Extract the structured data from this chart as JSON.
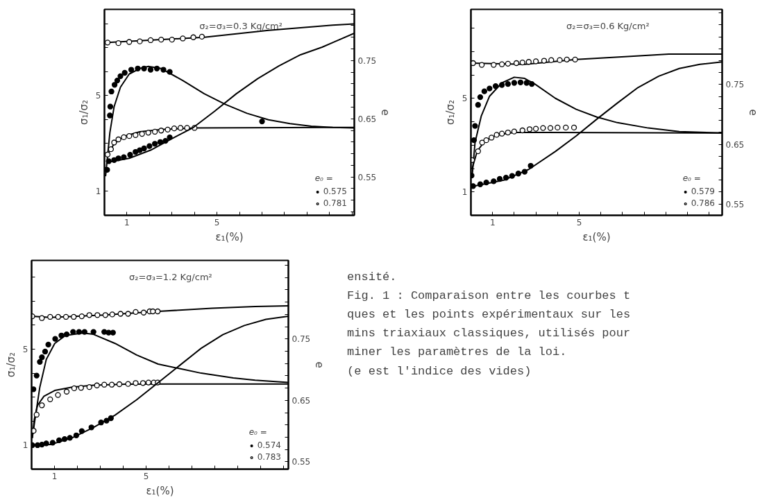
{
  "chart_data": [
    {
      "type": "line",
      "ylabel": "σ₁/σ₂",
      "y2label": "e",
      "xlabel": "ε₁(%)",
      "legend_title": "e₀ =",
      "legend": "bottom right",
      "annotations": [
        "σ₂=σ₃=0.3 Kg/cm²"
      ],
      "xlim": [
        0,
        11.1
      ],
      "ylim": [
        0,
        8.6
      ],
      "y2lim": [
        0.484,
        0.838
      ],
      "xticks": [
        1,
        {
          "value": 2,
          "label": null
        },
        {
          "value": 3,
          "label": null
        },
        {
          "value": 4,
          "label": null
        },
        5,
        {
          "value": 6,
          "label": null
        },
        {
          "value": 7,
          "label": null
        },
        {
          "value": 8,
          "label": null
        },
        {
          "value": 9,
          "label": null
        },
        {
          "value": 10,
          "label": null
        },
        {
          "value": 11,
          "label": null
        }
      ],
      "yticks": [
        1,
        {
          "value": 2,
          "label": null
        },
        {
          "value": 3,
          "label": null
        },
        {
          "value": 4,
          "label": null
        },
        5,
        {
          "value": 6,
          "label": null
        },
        {
          "value": 7,
          "label": null
        },
        {
          "value": 8,
          "label": null
        }
      ],
      "y2ticks": [
        {
          "value": 0.49,
          "label": null
        },
        {
          "value": 0.51,
          "label": null
        },
        {
          "value": 0.53,
          "label": null
        },
        0.55,
        {
          "value": 0.57,
          "label": null
        },
        {
          "value": 0.59,
          "label": null
        },
        {
          "value": 0.61,
          "label": null
        },
        {
          "value": 0.63,
          "label": null
        },
        0.65,
        {
          "value": 0.67,
          "label": null
        },
        {
          "value": 0.69,
          "label": null
        },
        {
          "value": 0.71,
          "label": null
        },
        {
          "value": 0.73,
          "label": null
        },
        0.75,
        {
          "value": 0.77,
          "label": null
        },
        {
          "value": 0.79,
          "label": null
        },
        {
          "value": 0.81,
          "label": null
        },
        {
          "value": 0.83,
          "label": null
        }
      ],
      "series": [
        {
          "type": "line",
          "axis": "y2",
          "color": "#000000",
          "x": [
            0,
            0.14,
            4.43,
            7.29,
            10.14,
            11.1
          ],
          "values": [
            0.781,
            0.781,
            0.79,
            0.802,
            0.811,
            0.813
          ]
        },
        {
          "type": "scatter",
          "axis": "y2",
          "marker": "circle",
          "color": "#ffffff",
          "x": [
            0.14,
            0.62,
            1.1,
            1.57,
            2.05,
            2.52,
            3.0,
            3.48,
            3.95,
            4.33
          ],
          "values": [
            0.781,
            0.78,
            0.782,
            0.783,
            0.785,
            0.786,
            0.786,
            0.788,
            0.79,
            0.791
          ]
        },
        {
          "type": "line",
          "color": "#000000",
          "x": [
            0.05,
            0.24,
            0.43,
            0.71,
            1.1,
            1.57,
            1.95,
            2.52,
            3.48,
            4.43,
            5.38,
            6.33,
            7.29,
            8.24,
            9.19,
            10.14,
            11.1
          ],
          "values": [
            1.63,
            3.45,
            4.54,
            5.35,
            5.9,
            6.13,
            6.22,
            6.13,
            5.63,
            5.08,
            4.63,
            4.26,
            3.99,
            3.83,
            3.72,
            3.67,
            3.65
          ]
        },
        {
          "type": "scatter",
          "name": "0.575",
          "marker": "circle",
          "color": "#000000",
          "x": [
            0.12,
            0.24,
            0.26,
            0.31,
            0.45,
            0.57,
            0.71,
            0.9,
            1.19,
            1.48,
            1.76,
            2.05,
            2.33,
            2.62,
            2.9,
            7.0
          ],
          "values": [
            1.9,
            4.17,
            4.54,
            5.17,
            5.45,
            5.63,
            5.81,
            5.95,
            6.08,
            6.13,
            6.13,
            6.08,
            6.13,
            6.08,
            5.99,
            3.92
          ]
        },
        {
          "type": "line",
          "color": "#000000",
          "x": [
            0.14,
            0.43,
            0.9,
            1.57,
            2.52,
            4.05,
            10.14,
            11.1
          ],
          "values": [
            2.54,
            2.99,
            3.31,
            3.49,
            3.58,
            3.65,
            3.67,
            3.67
          ]
        },
        {
          "type": "scatter",
          "name": "0.781",
          "marker": "circle",
          "color": "#ffffff",
          "x": [
            0.14,
            0.29,
            0.43,
            0.62,
            0.86,
            1.1,
            1.38,
            1.67,
            1.95,
            2.24,
            2.52,
            2.81,
            3.1,
            3.38,
            3.67,
            4.0
          ],
          "values": [
            2.54,
            2.76,
            3.04,
            3.17,
            3.26,
            3.31,
            3.35,
            3.4,
            3.45,
            3.49,
            3.54,
            3.58,
            3.63,
            3.65,
            3.65,
            3.65
          ]
        },
        {
          "type": "line",
          "axis": "y2",
          "color": "#000000",
          "x": [
            0.1,
            1.1,
            2.05,
            3.0,
            3.95,
            4.9,
            5.86,
            6.81,
            7.76,
            8.71,
            9.67,
            10.14,
            11.1
          ],
          "values": [
            0.575,
            0.582,
            0.596,
            0.616,
            0.635,
            0.663,
            0.693,
            0.719,
            0.741,
            0.76,
            0.773,
            0.781,
            0.797
          ]
        },
        {
          "type": "scatter",
          "axis": "y2",
          "marker": "circle",
          "color": "#000000",
          "x": [
            0.19,
            0.43,
            0.62,
            0.86,
            1.14,
            1.38,
            1.57,
            1.76,
            2.0,
            2.24,
            2.48,
            2.71,
            2.9
          ],
          "values": [
            0.577,
            0.579,
            0.582,
            0.584,
            0.588,
            0.593,
            0.596,
            0.599,
            0.603,
            0.607,
            0.61,
            0.612,
            0.618
          ]
        }
      ]
    },
    {
      "type": "line",
      "ylabel": "σ₁/σ₂",
      "y2label": "e",
      "xlabel": "ε₁(%)",
      "legend_title": "e₀ =",
      "legend": "bottom right",
      "annotations": [
        "σ₂=σ₃=0.6 Kg/cm²"
      ],
      "xlim": [
        0,
        11.6
      ],
      "ylim": [
        0,
        8.8
      ],
      "y2lim": [
        0.531,
        0.876
      ],
      "xticks": [
        1,
        {
          "value": 2,
          "label": null
        },
        {
          "value": 3,
          "label": null
        },
        {
          "value": 4,
          "label": null
        },
        5,
        {
          "value": 6,
          "label": null
        },
        {
          "value": 7,
          "label": null
        },
        {
          "value": 8,
          "label": null
        },
        {
          "value": 9,
          "label": null
        },
        {
          "value": 10,
          "label": null
        },
        {
          "value": 11,
          "label": null
        }
      ],
      "yticks": [
        1,
        {
          "value": 2,
          "label": null
        },
        {
          "value": 3,
          "label": null
        },
        {
          "value": 4,
          "label": null
        },
        5,
        {
          "value": 6,
          "label": null
        },
        {
          "value": 7,
          "label": null
        },
        {
          "value": 8,
          "label": null
        }
      ],
      "y2ticks": [
        0.55,
        {
          "value": 0.57,
          "label": null
        },
        {
          "value": 0.59,
          "label": null
        },
        {
          "value": 0.61,
          "label": null
        },
        {
          "value": 0.63,
          "label": null
        },
        0.65,
        {
          "value": 0.67,
          "label": null
        },
        {
          "value": 0.69,
          "label": null
        },
        {
          "value": 0.71,
          "label": null
        },
        {
          "value": 0.73,
          "label": null
        },
        0.75,
        {
          "value": 0.77,
          "label": null
        },
        {
          "value": 0.79,
          "label": null
        },
        {
          "value": 0.81,
          "label": null
        },
        {
          "value": 0.83,
          "label": null
        },
        {
          "value": 0.85,
          "label": null
        },
        {
          "value": 0.87,
          "label": null
        }
      ],
      "series": [
        {
          "type": "line",
          "axis": "y2",
          "color": "#000000",
          "x": [
            0,
            2.48,
            4.86,
            7.24,
            9.14,
            11.6
          ],
          "values": [
            0.786,
            0.784,
            0.792,
            0.797,
            0.801,
            0.801
          ]
        },
        {
          "type": "scatter",
          "axis": "y2",
          "marker": "circle",
          "color": "#ffffff",
          "x": [
            0.1,
            0.5,
            1.05,
            1.43,
            1.71,
            2.1,
            2.38,
            2.67,
            3.0,
            3.38,
            3.71,
            4.1,
            4.43,
            4.81
          ],
          "values": [
            0.786,
            0.783,
            0.783,
            0.784,
            0.785,
            0.786,
            0.787,
            0.788,
            0.789,
            0.79,
            0.791,
            0.791,
            0.792,
            0.792
          ]
        },
        {
          "type": "line",
          "color": "#000000",
          "x": [
            0.05,
            0.19,
            0.48,
            0.86,
            1.43,
            2.0,
            2.48,
            2.95,
            3.9,
            4.86,
            5.81,
            6.76,
            8.19,
            9.62,
            11.6
          ],
          "values": [
            1.6,
            3.11,
            4.25,
            5.09,
            5.66,
            5.9,
            5.85,
            5.61,
            5.0,
            4.53,
            4.2,
            3.96,
            3.73,
            3.58,
            3.52
          ]
        },
        {
          "type": "scatter",
          "name": "0.579",
          "marker": "circle",
          "color": "#000000",
          "x": [
            0.03,
            0.14,
            0.19,
            0.33,
            0.43,
            0.62,
            0.86,
            1.14,
            1.43,
            1.71,
            2.0,
            2.29,
            2.57,
            2.81
          ],
          "values": [
            1.7,
            3.21,
            3.82,
            4.72,
            5.05,
            5.3,
            5.42,
            5.52,
            5.57,
            5.61,
            5.66,
            5.68,
            5.66,
            5.61
          ]
        },
        {
          "type": "line",
          "color": "#000000",
          "x": [
            0.05,
            0.29,
            0.67,
            1.24,
            2.0,
            3.43,
            11.6
          ],
          "values": [
            1.98,
            2.74,
            3.21,
            3.44,
            3.54,
            3.54,
            3.52
          ]
        },
        {
          "type": "scatter",
          "name": "0.786",
          "marker": "circle",
          "color": "#ffffff",
          "x": [
            0.05,
            0.33,
            0.52,
            0.71,
            0.95,
            1.19,
            1.43,
            1.71,
            2.0,
            2.38,
            2.71,
            3.0,
            3.33,
            3.67,
            4.0,
            4.38,
            4.76
          ],
          "values": [
            2.36,
            2.74,
            3.11,
            3.21,
            3.32,
            3.44,
            3.49,
            3.54,
            3.58,
            3.63,
            3.68,
            3.7,
            3.73,
            3.73,
            3.75,
            3.75,
            3.75
          ]
        },
        {
          "type": "line",
          "axis": "y2",
          "color": "#000000",
          "x": [
            0,
            1.52,
            2.67,
            3.9,
            4.86,
            5.81,
            6.76,
            7.71,
            8.67,
            9.62,
            10.57,
            11.6
          ],
          "values": [
            0.579,
            0.59,
            0.608,
            0.638,
            0.664,
            0.692,
            0.719,
            0.745,
            0.764,
            0.777,
            0.784,
            0.788
          ]
        },
        {
          "type": "scatter",
          "axis": "y2",
          "marker": "circle",
          "color": "#000000",
          "x": [
            0.1,
            0.43,
            0.71,
            1.05,
            1.33,
            1.62,
            1.9,
            2.19,
            2.48,
            2.76
          ],
          "values": [
            0.58,
            0.583,
            0.586,
            0.588,
            0.592,
            0.594,
            0.597,
            0.601,
            0.604,
            0.614
          ]
        }
      ]
    },
    {
      "type": "line",
      "ylabel": "σ₁/σ₂",
      "y2label": "e",
      "xlabel": "ε₁(%)",
      "legend_title": "e₀ =",
      "legend": "bottom right",
      "annotations": [
        "σ₂=σ₃=1.2 Kg/cm²"
      ],
      "xlim": [
        0,
        11.2
      ],
      "ylim": [
        0,
        8.7
      ],
      "y2lim": [
        0.538,
        0.878
      ],
      "xticks": [
        1,
        {
          "value": 2,
          "label": null
        },
        {
          "value": 3,
          "label": null
        },
        {
          "value": 4,
          "label": null
        },
        5,
        {
          "value": 6,
          "label": null
        },
        {
          "value": 7,
          "label": null
        },
        {
          "value": 8,
          "label": null
        },
        {
          "value": 9,
          "label": null
        },
        {
          "value": 10,
          "label": null
        },
        {
          "value": 11,
          "label": null
        }
      ],
      "yticks": [
        1,
        {
          "value": 2,
          "label": null
        },
        {
          "value": 3,
          "label": null
        },
        {
          "value": 4,
          "label": null
        },
        5,
        {
          "value": 6,
          "label": null
        },
        {
          "value": 7,
          "label": null
        },
        {
          "value": 8,
          "label": null
        }
      ],
      "y2ticks": [
        0.55,
        {
          "value": 0.57,
          "label": null
        },
        {
          "value": 0.59,
          "label": null
        },
        {
          "value": 0.61,
          "label": null
        },
        {
          "value": 0.63,
          "label": null
        },
        0.65,
        {
          "value": 0.67,
          "label": null
        },
        {
          "value": 0.69,
          "label": null
        },
        {
          "value": 0.71,
          "label": null
        },
        {
          "value": 0.73,
          "label": null
        },
        0.75,
        {
          "value": 0.77,
          "label": null
        },
        {
          "value": 0.79,
          "label": null
        },
        {
          "value": 0.81,
          "label": null
        },
        {
          "value": 0.83,
          "label": null
        },
        {
          "value": 0.85,
          "label": null
        },
        {
          "value": 0.87,
          "label": null
        }
      ],
      "series": [
        {
          "type": "line",
          "axis": "y2",
          "color": "#000000",
          "x": [
            0,
            0.83,
            3.17,
            5.52,
            7.87,
            9.75,
            11.2
          ],
          "values": [
            0.787,
            0.785,
            0.789,
            0.795,
            0.8,
            0.803,
            0.804
          ]
        },
        {
          "type": "scatter",
          "axis": "y2",
          "marker": "circle",
          "color": "#ffffff",
          "x": [
            0.03,
            0.45,
            0.81,
            1.16,
            1.5,
            1.84,
            2.19,
            2.52,
            2.87,
            3.22,
            3.52,
            3.88,
            4.21,
            4.54,
            4.89,
            5.15,
            5.29,
            5.5
          ],
          "values": [
            0.787,
            0.784,
            0.786,
            0.786,
            0.786,
            0.786,
            0.787,
            0.789,
            0.789,
            0.789,
            0.79,
            0.791,
            0.791,
            0.794,
            0.793,
            0.795,
            0.795,
            0.795
          ]
        },
        {
          "type": "line",
          "color": "#000000",
          "x": [
            0.03,
            0.12,
            0.36,
            0.64,
            1.01,
            1.48,
            2.23,
            2.7,
            3.64,
            4.58,
            5.52,
            6.46,
            7.4,
            8.8,
            9.75,
            11.2
          ],
          "values": [
            1.3,
            1.89,
            3.42,
            4.57,
            5.24,
            5.57,
            5.67,
            5.62,
            5.24,
            4.76,
            4.38,
            4.19,
            4.0,
            3.8,
            3.71,
            3.61
          ]
        },
        {
          "type": "scatter",
          "name": "0.574",
          "marker": "circle",
          "color": "#000000",
          "x": [
            0.08,
            0.22,
            0.36,
            0.45,
            0.59,
            0.73,
            1.03,
            1.3,
            1.53,
            1.81,
            2.07,
            2.31,
            2.7,
            3.17,
            3.36,
            3.55
          ],
          "values": [
            3.33,
            3.9,
            4.47,
            4.66,
            4.9,
            5.19,
            5.43,
            5.57,
            5.62,
            5.72,
            5.72,
            5.72,
            5.72,
            5.72,
            5.69,
            5.69
          ]
        },
        {
          "type": "line",
          "color": "#000000",
          "x": [
            0.03,
            0.12,
            0.26,
            0.54,
            1.01,
            1.77,
            2.7,
            4.11,
            5.99,
            11.2
          ],
          "values": [
            1.3,
            2.08,
            2.66,
            3.04,
            3.28,
            3.42,
            3.5,
            3.54,
            3.55,
            3.55
          ]
        },
        {
          "type": "scatter",
          "name": "0.783",
          "marker": "circle",
          "color": "#ffffff",
          "x": [
            0.09,
            0.22,
            0.45,
            0.81,
            1.15,
            1.53,
            1.86,
            2.16,
            2.52,
            2.85,
            3.17,
            3.5,
            3.83,
            4.21,
            4.54,
            4.86,
            5.1,
            5.33,
            5.5
          ],
          "values": [
            1.6,
            2.27,
            2.66,
            2.91,
            3.09,
            3.23,
            3.37,
            3.39,
            3.42,
            3.49,
            3.52,
            3.52,
            3.54,
            3.55,
            3.59,
            3.59,
            3.61,
            3.61,
            3.61
          ]
        },
        {
          "type": "line",
          "axis": "y2",
          "color": "#000000",
          "x": [
            0,
            0.83,
            1.77,
            2.7,
            3.64,
            4.58,
            5.52,
            6.46,
            7.4,
            8.34,
            9.28,
            10.22,
            11.2
          ],
          "values": [
            0.577,
            0.578,
            0.589,
            0.606,
            0.626,
            0.651,
            0.679,
            0.707,
            0.735,
            0.757,
            0.772,
            0.782,
            0.787
          ]
        },
        {
          "type": "scatter",
          "axis": "y2",
          "marker": "circle",
          "color": "#000000",
          "x": [
            0.03,
            0.26,
            0.45,
            0.64,
            0.92,
            1.2,
            1.44,
            1.67,
            1.95,
            2.19,
            2.61,
            3.03,
            3.27,
            3.46
          ],
          "values": [
            0.577,
            0.577,
            0.578,
            0.58,
            0.581,
            0.585,
            0.587,
            0.589,
            0.593,
            0.6,
            0.606,
            0.614,
            0.617,
            0.621
          ]
        }
      ]
    },
    {
      "type": "other",
      "annotations": [
        "ensité.",
        "Fig. 1 : Comparaison entre les courbes t",
        "ques et les points expérimentaux sur les",
        "mins triaxiaux classiques, utilisés pour",
        "miner les paramètres de la loi.",
        "(e est l'indice des vides)"
      ]
    }
  ]
}
